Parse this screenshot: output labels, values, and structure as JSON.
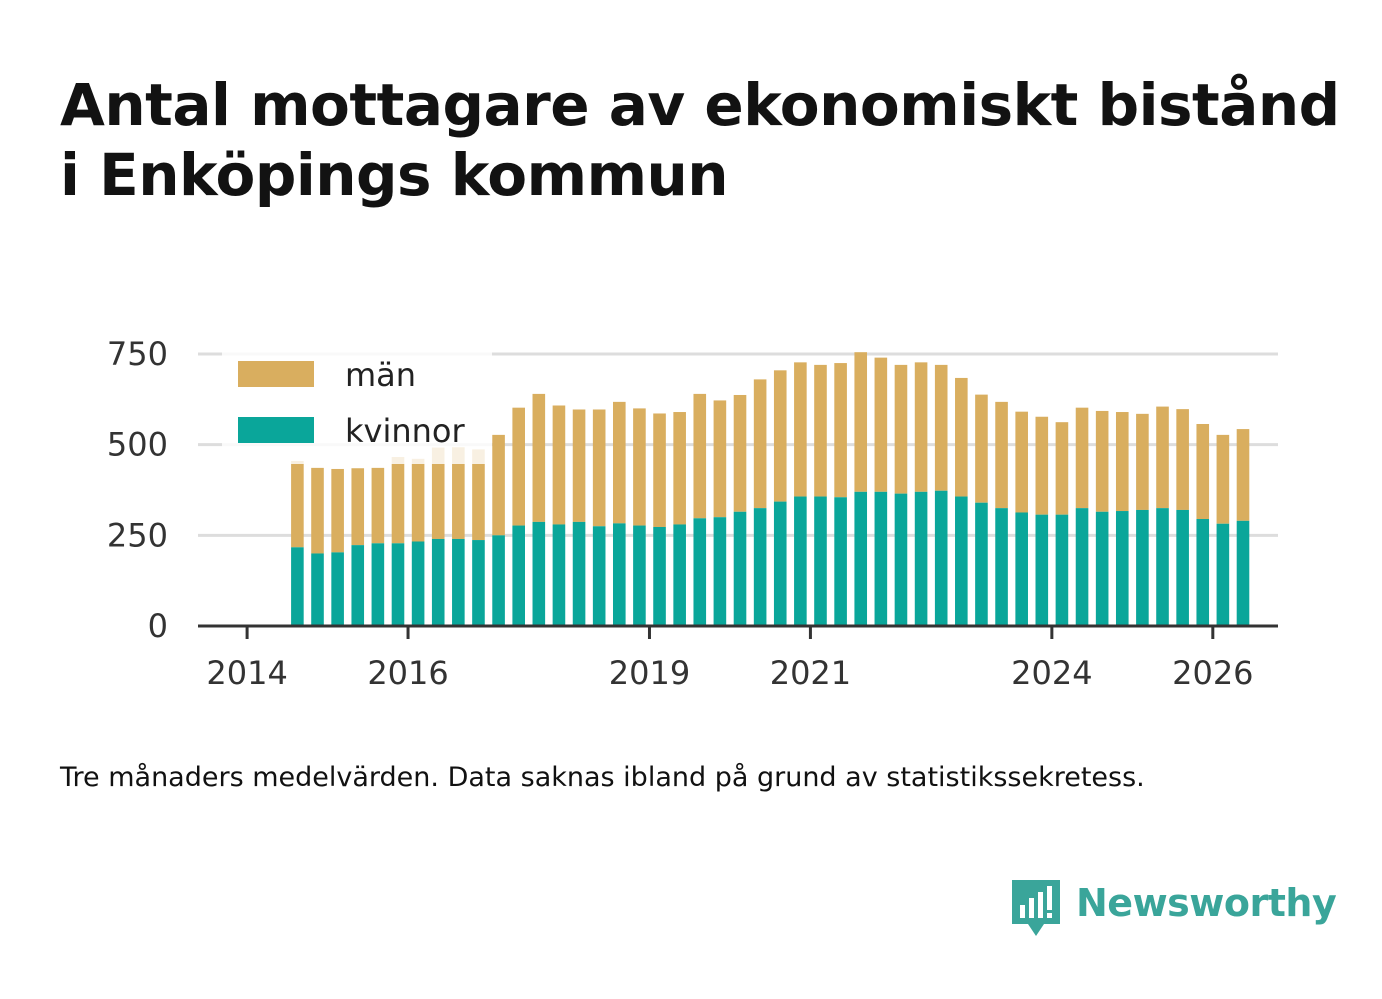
{
  "title_line1": "Antal mottagare av ekonomiskt bistånd",
  "title_line2": "i Enköpings kommun",
  "caption": "Tre månaders medelvärden. Data saknas ibland på grund av statistikssekretess.",
  "brand": {
    "name": "Newsworthy",
    "icon": "newsworthy-logo-icon"
  },
  "colors": {
    "man": "#d9ae5f",
    "kvinnor": "#0aa69a",
    "grid": "#dddddd",
    "axis": "#333333",
    "brand": "#3aa59a"
  },
  "chart_data": {
    "type": "bar",
    "stacked": true,
    "title": "Antal mottagare av ekonomiskt bistånd i Enköpings kommun",
    "xlabel": "",
    "ylabel": "",
    "ylim": [
      0,
      750
    ],
    "yticks": [
      "0",
      "250",
      "500",
      "750"
    ],
    "xticks": [
      "2014",
      "2016",
      "2019",
      "2021",
      "2024",
      "2026"
    ],
    "grid": true,
    "legend_position": "top-left",
    "categories": [
      "2014-Q3",
      "2014-Q4",
      "2015-Q1",
      "2015-Q2",
      "2015-Q3",
      "2015-Q4",
      "2016-Q1",
      "2016-Q2",
      "2016-Q3",
      "2016-Q4",
      "2017-Q1",
      "2017-Q2",
      "2017-Q3",
      "2017-Q4",
      "2018-Q1",
      "2018-Q2",
      "2018-Q3",
      "2018-Q4",
      "2019-Q1",
      "2019-Q2",
      "2019-Q3",
      "2019-Q4",
      "2020-Q1",
      "2020-Q2",
      "2020-Q3",
      "2020-Q4",
      "2021-Q1",
      "2021-Q2",
      "2021-Q3",
      "2021-Q4",
      "2022-Q1",
      "2022-Q2",
      "2022-Q3",
      "2022-Q4",
      "2023-Q1",
      "2023-Q2",
      "2023-Q3",
      "2023-Q4",
      "2024-Q1",
      "2024-Q2",
      "2024-Q3",
      "2024-Q4",
      "2025-Q1",
      "2025-Q2",
      "2025-Q3",
      "2025-Q4",
      "2026-Q1",
      "2026-Q2"
    ],
    "series": [
      {
        "name": "kvinnor",
        "values": [
          217,
          200,
          203,
          223,
          228,
          228,
          233,
          240,
          240,
          237,
          250,
          277,
          287,
          280,
          287,
          275,
          283,
          277,
          273,
          280,
          297,
          300,
          315,
          325,
          343,
          357,
          357,
          355,
          370,
          370,
          365,
          370,
          373,
          357,
          340,
          325,
          313,
          307,
          307,
          325,
          315,
          317,
          320,
          325,
          320,
          295,
          282,
          290
        ]
      },
      {
        "name": "män",
        "values": [
          238,
          236,
          230,
          212,
          208,
          238,
          228,
          252,
          253,
          250,
          277,
          325,
          353,
          328,
          310,
          322,
          335,
          323,
          313,
          310,
          343,
          322,
          322,
          355,
          362,
          370,
          363,
          370,
          385,
          370,
          355,
          357,
          347,
          327,
          298,
          293,
          278,
          270,
          255,
          277,
          278,
          273,
          265,
          280,
          278,
          262,
          245,
          253
        ]
      }
    ]
  }
}
